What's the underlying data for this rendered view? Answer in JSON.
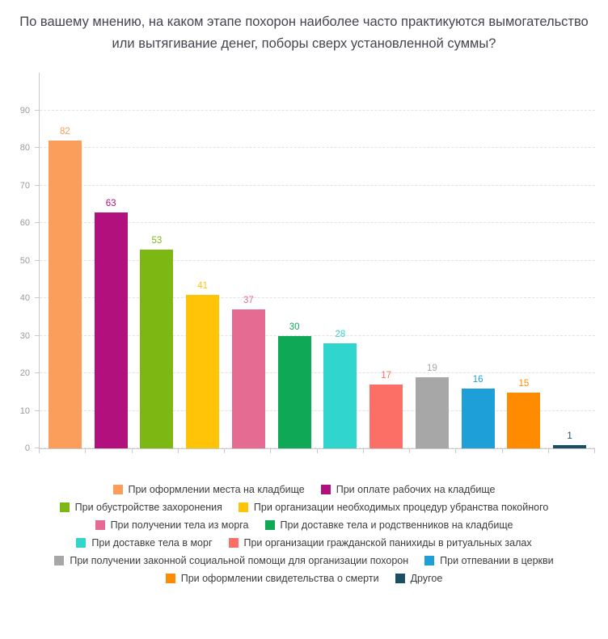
{
  "title": "По вашему мнению, на каком этапе похорон наиболее часто практикуются вымогательство или вытягивание денег, поборы сверх установленной суммы?",
  "chart_data": {
    "type": "bar",
    "title": "По вашему мнению, на каком этапе похорон наиболее часто практикуются вымогательство или вытягивание денег, поборы сверх установленной суммы?",
    "categories": [
      "При оформлении места на кладбище",
      "При оплате рабочих на кладбище",
      "При обустройстве захоронения",
      "При организации необходимых процедур убранства покойного",
      "При получении тела из морга",
      "При доставке тела и родственников на кладбище",
      "При доставке тела в морг",
      "При организации гражданской панихиды в ритуальных залах",
      "При получении законной социальной помощи для организации похорон",
      "При отпевании в церкви",
      "При оформлении свидетельства о смерти",
      "Другое"
    ],
    "values": [
      82,
      63,
      53,
      41,
      37,
      30,
      28,
      17,
      19,
      16,
      15,
      1
    ],
    "colors": [
      "#fb9d5b",
      "#b1107d",
      "#7db713",
      "#ffc407",
      "#e56b92",
      "#0fa857",
      "#30d5ce",
      "#fb6f66",
      "#a7a7a7",
      "#1e9fd7",
      "#ff8c00",
      "#1a4f66"
    ],
    "xlabel": "",
    "ylabel": "",
    "ylim": [
      0,
      100
    ],
    "axis_max": 100,
    "yticks": [
      0,
      10,
      20,
      30,
      40,
      50,
      60,
      70,
      80,
      90
    ],
    "grid": true,
    "grid_style": "dashed",
    "data_labels": true,
    "legend_position": "bottom",
    "legend_columns": 2
  }
}
